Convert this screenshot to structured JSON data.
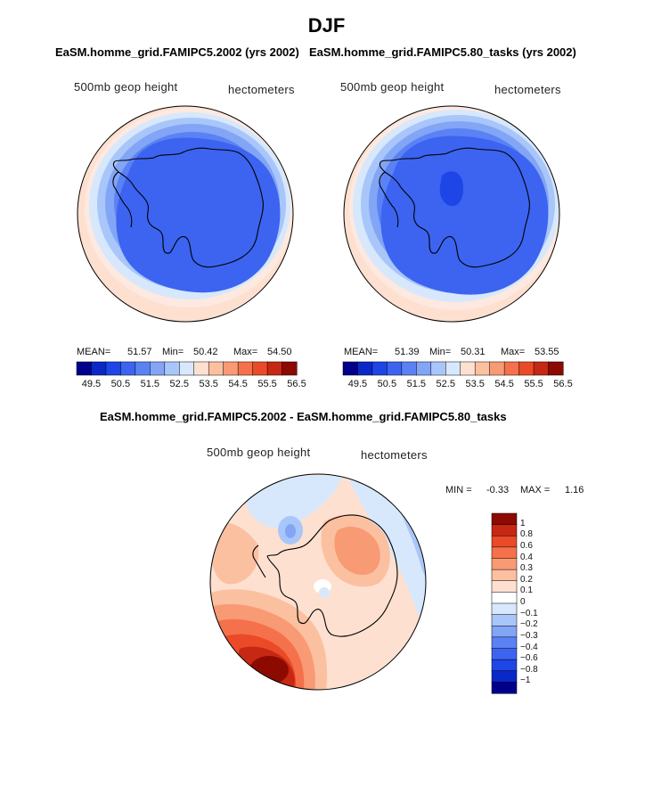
{
  "page": {
    "title": "DJF",
    "panel_titles": [
      "EaSM.homme_grid.FAMIPC5.2002 (yrs 2002)",
      "EaSM.homme_grid.FAMIPC5.80_tasks (yrs 2002)"
    ],
    "diff_title": "EaSM.homme_grid.FAMIPC5.2002 - EaSM.homme_grid.FAMIPC5.80_tasks"
  },
  "chart_data": [
    {
      "type": "heatmap",
      "projection": "south polar stereographic",
      "variable": "500mb geop height",
      "units": "hectometers",
      "stats": {
        "mean_label": "MEAN=",
        "mean": "51.57",
        "min_label": "Min=",
        "min": "50.42",
        "max_label": "Max=",
        "max": "54.50"
      },
      "colorbar": {
        "ticks": [
          "49.5",
          "50.5",
          "51.5",
          "52.5",
          "53.5",
          "54.5",
          "55.5",
          "56.5"
        ],
        "colors": [
          "#00008b",
          "#0a28c8",
          "#1e46e6",
          "#3c64f0",
          "#5a82f5",
          "#82a5f5",
          "#a9c6fa",
          "#d7e8fc",
          "#fde0d0",
          "#fbc0a0",
          "#f89a74",
          "#f4714c",
          "#ea4a28",
          "#c62814",
          "#8c0a00"
        ]
      }
    },
    {
      "type": "heatmap",
      "projection": "south polar stereographic",
      "variable": "500mb geop height",
      "units": "hectometers",
      "stats": {
        "mean_label": "MEAN=",
        "mean": "51.39",
        "min_label": "Min=",
        "min": "50.31",
        "max_label": "Max=",
        "max": "53.55"
      },
      "colorbar": {
        "ticks": [
          "49.5",
          "50.5",
          "51.5",
          "52.5",
          "53.5",
          "54.5",
          "55.5",
          "56.5"
        ],
        "colors": [
          "#00008b",
          "#0a28c8",
          "#1e46e6",
          "#3c64f0",
          "#5a82f5",
          "#82a5f5",
          "#a9c6fa",
          "#d7e8fc",
          "#fde0d0",
          "#fbc0a0",
          "#f89a74",
          "#f4714c",
          "#ea4a28",
          "#c62814",
          "#8c0a00"
        ]
      }
    },
    {
      "type": "heatmap",
      "projection": "south polar stereographic",
      "variable": "500mb geop height",
      "units": "hectometers",
      "stats": {
        "min_label": "MIN =",
        "min": "-0.33",
        "max_label": "MAX =",
        "max": "1.16"
      },
      "colorbar": {
        "ticks": [
          "1",
          "0.8",
          "0.6",
          "0.4",
          "0.3",
          "0.2",
          "0.1",
          "0",
          "−0.1",
          "−0.2",
          "−0.3",
          "−0.4",
          "−0.6",
          "−0.8",
          "−1"
        ],
        "colors": [
          "#8c0a00",
          "#c62814",
          "#ea4a28",
          "#f4714c",
          "#f89a74",
          "#fbc0a0",
          "#fde0d0",
          "#ffffff",
          "#d7e8fc",
          "#a9c6fa",
          "#82a5f5",
          "#5a82f5",
          "#3c64f0",
          "#1e46e6",
          "#0a28c8",
          "#00008b"
        ]
      }
    }
  ]
}
